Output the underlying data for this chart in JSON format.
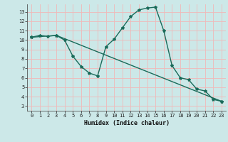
{
  "title": "",
  "xlabel": "Humidex (Indice chaleur)",
  "background_color": "#cce8e8",
  "grid_color": "#f0b8b8",
  "line_color": "#1a6b5a",
  "xlim": [
    -0.5,
    23.5
  ],
  "ylim": [
    2.5,
    13.8
  ],
  "xticks": [
    0,
    1,
    2,
    3,
    4,
    5,
    6,
    7,
    8,
    9,
    10,
    11,
    12,
    13,
    14,
    15,
    16,
    17,
    18,
    19,
    20,
    21,
    22,
    23
  ],
  "yticks": [
    3,
    4,
    5,
    6,
    7,
    8,
    9,
    10,
    11,
    12,
    13
  ],
  "series1_x": [
    0,
    1,
    2,
    3,
    4,
    5,
    6,
    7,
    8,
    9,
    10,
    11,
    12,
    13,
    14,
    15,
    16,
    17,
    18,
    19,
    20,
    21,
    22,
    23
  ],
  "series1_y": [
    10.3,
    10.5,
    10.4,
    10.5,
    10.0,
    8.3,
    7.2,
    6.5,
    6.2,
    9.3,
    10.1,
    11.3,
    12.5,
    13.2,
    13.4,
    13.5,
    11.0,
    7.3,
    6.0,
    5.8,
    4.8,
    4.6,
    3.7,
    3.5
  ],
  "series2_x": [
    0,
    3,
    23
  ],
  "series2_y": [
    10.3,
    10.5,
    3.5
  ],
  "marker": "*",
  "markersize": 3,
  "linewidth": 1.0,
  "xlabel_fontsize": 6,
  "tick_fontsize": 5
}
